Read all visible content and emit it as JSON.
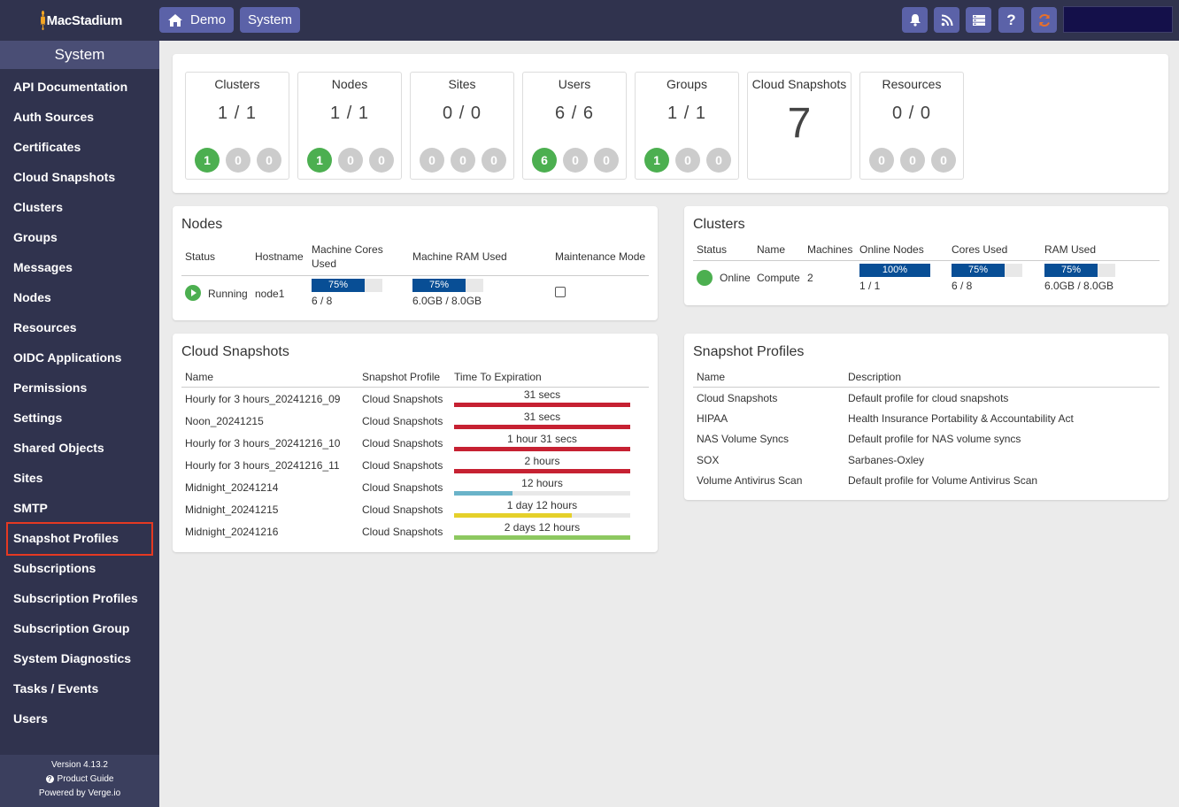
{
  "brand": {
    "name": "MacStadium"
  },
  "header": {
    "nav": [
      {
        "label": "Demo",
        "icon": "home-icon"
      },
      {
        "label": "System"
      }
    ],
    "icons": [
      "bell-icon",
      "rss-icon",
      "server-list-icon",
      "help-icon",
      "refresh-icon"
    ]
  },
  "sidebar": {
    "title": "System",
    "items": [
      "API Documentation",
      "Auth Sources",
      "Certificates",
      "Cloud Snapshots",
      "Clusters",
      "Groups",
      "Messages",
      "Nodes",
      "Resources",
      "OIDC Applications",
      "Permissions",
      "Settings",
      "Shared Objects",
      "Sites",
      "SMTP",
      "Snapshot Profiles",
      "Subscriptions",
      "Subscription Profiles",
      "Subscription Group",
      "System Diagnostics",
      "Tasks / Events",
      "Users"
    ],
    "selected": "Snapshot Profiles",
    "footer": {
      "version": "Version 4.13.2",
      "guide": "Product Guide",
      "powered": "Powered by Verge.io"
    }
  },
  "stats": [
    {
      "title": "Clusters",
      "value": "1 / 1",
      "circles": [
        "1",
        "0",
        "0"
      ]
    },
    {
      "title": "Nodes",
      "value": "1 / 1",
      "circles": [
        "1",
        "0",
        "0"
      ]
    },
    {
      "title": "Sites",
      "value": "0 / 0",
      "circles": [
        "0",
        "0",
        "0"
      ]
    },
    {
      "title": "Users",
      "value": "6 / 6",
      "circles": [
        "6",
        "0",
        "0"
      ]
    },
    {
      "title": "Groups",
      "value": "1 / 1",
      "circles": [
        "1",
        "0",
        "0"
      ]
    },
    {
      "title": "Cloud Snapshots",
      "value": "7"
    },
    {
      "title": "Resources",
      "value": "0 / 0",
      "circles": [
        "0",
        "0",
        "0"
      ]
    }
  ],
  "nodes": {
    "title": "Nodes",
    "headers": {
      "status": "Status",
      "hostname": "Hostname",
      "cores": "Machine Cores Used",
      "ram": "Machine RAM Used",
      "maint": "Maintenance Mode"
    },
    "row": {
      "status": "Running",
      "hostname": "node1",
      "cores_pct": "75%",
      "cores_pct_value": 75,
      "cores_text": "6 / 8",
      "ram_pct": "75%",
      "ram_pct_value": 75,
      "ram_text": "6.0GB / 8.0GB",
      "maintenance": false
    }
  },
  "clusters": {
    "title": "Clusters",
    "headers": {
      "status": "Status",
      "name": "Name",
      "machines": "Machines",
      "online": "Online Nodes",
      "cores": "Cores Used",
      "ram": "RAM Used"
    },
    "row": {
      "status": "Online",
      "name": "Compute",
      "machines": "2",
      "online_pct": "100%",
      "online_pct_value": 100,
      "online_text": "1 / 1",
      "cores_pct": "75%",
      "cores_pct_value": 75,
      "cores_text": "6 / 8",
      "ram_pct": "75%",
      "ram_pct_value": 75,
      "ram_text": "6.0GB / 8.0GB"
    }
  },
  "cloud_snapshots": {
    "title": "Cloud Snapshots",
    "headers": {
      "name": "Name",
      "profile": "Snapshot Profile",
      "expiration": "Time To Expiration"
    },
    "rows": [
      {
        "name": "Hourly for 3 hours_20241216_09",
        "profile": "Cloud Snapshots",
        "expiration": "31 secs",
        "remaining": 1.0,
        "color": "#c62132"
      },
      {
        "name": "Noon_20241215",
        "profile": "Cloud Snapshots",
        "expiration": "31 secs",
        "remaining": 1.0,
        "color": "#c62132"
      },
      {
        "name": "Hourly for 3 hours_20241216_10",
        "profile": "Cloud Snapshots",
        "expiration": "1 hour 31 secs",
        "remaining": 1.0,
        "color": "#c62132"
      },
      {
        "name": "Hourly for 3 hours_20241216_11",
        "profile": "Cloud Snapshots",
        "expiration": "2 hours",
        "remaining": 1.0,
        "color": "#c62132"
      },
      {
        "name": "Midnight_20241214",
        "profile": "Cloud Snapshots",
        "expiration": "12 hours",
        "remaining": 0.33,
        "color": "#6ab3c9"
      },
      {
        "name": "Midnight_20241215",
        "profile": "Cloud Snapshots",
        "expiration": "1 day 12 hours",
        "remaining": 0.67,
        "color": "#e5d02a"
      },
      {
        "name": "Midnight_20241216",
        "profile": "Cloud Snapshots",
        "expiration": "2 days 12 hours",
        "remaining": 1.0,
        "color": "#8dc860"
      }
    ]
  },
  "snapshot_profiles": {
    "title": "Snapshot Profiles",
    "headers": {
      "name": "Name",
      "description": "Description"
    },
    "rows": [
      {
        "name": "Cloud Snapshots",
        "description": "Default profile for cloud snapshots"
      },
      {
        "name": "HIPAA",
        "description": "Health Insurance Portability & Accountability Act"
      },
      {
        "name": "NAS Volume Syncs",
        "description": "Default profile for NAS volume syncs"
      },
      {
        "name": "SOX",
        "description": "Sarbanes-Oxley"
      },
      {
        "name": "Volume Antivirus Scan",
        "description": "Default profile for Volume Antivirus Scan"
      }
    ]
  }
}
